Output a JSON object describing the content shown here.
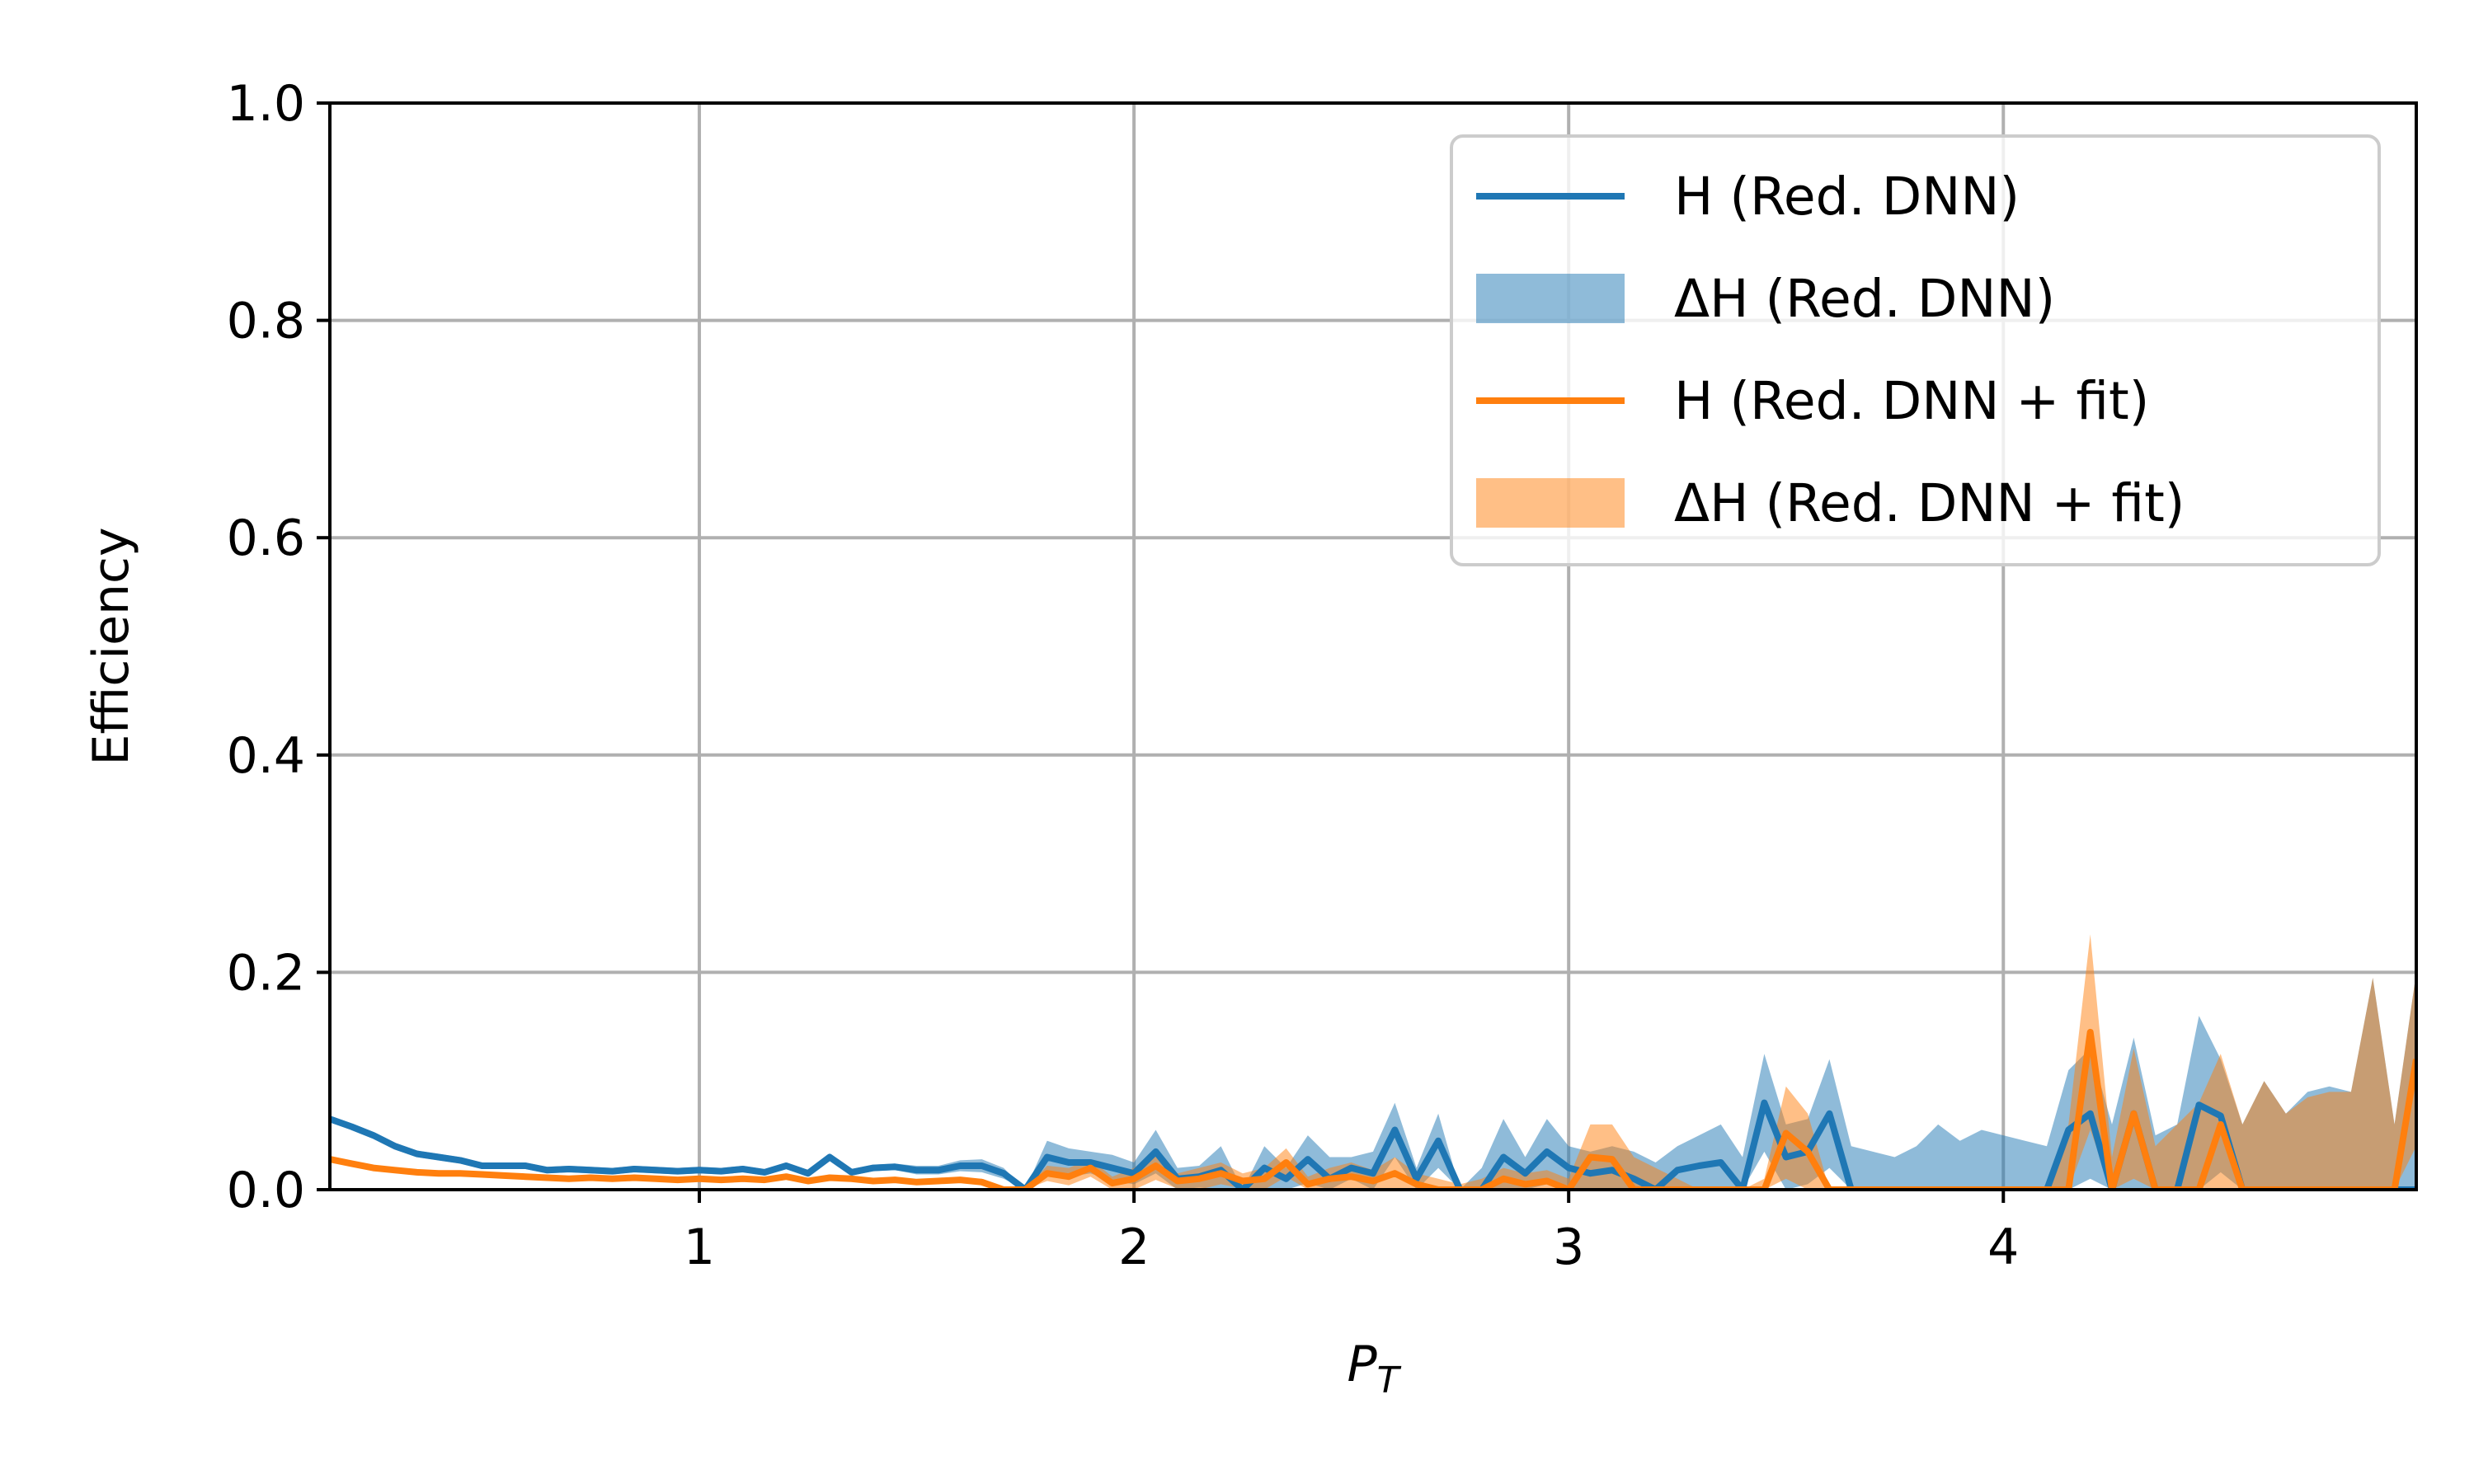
{
  "chart_data": {
    "type": "line",
    "xlabel": "P",
    "xlabel_subscript": "T",
    "ylabel": "Efficiency",
    "xlim": [
      0.15,
      4.95
    ],
    "ylim": [
      0.0,
      1.0
    ],
    "xticks": [
      1,
      2,
      3,
      4
    ],
    "xtick_labels": [
      "1",
      "2",
      "3",
      "4"
    ],
    "yticks": [
      0.0,
      0.2,
      0.4,
      0.6,
      0.8,
      1.0
    ],
    "ytick_labels": [
      "0.0",
      "0.2",
      "0.4",
      "0.6",
      "0.8",
      "1.0"
    ],
    "grid": true,
    "legend_position": "top-right",
    "colors": {
      "blue": "#1f77b4",
      "orange": "#ff7f0e",
      "blue_band": "#1f77b4",
      "orange_band": "#ff7f0e"
    },
    "legend": [
      {
        "label": "H (Red. DNN)",
        "kind": "line",
        "color": "#1f77b4"
      },
      {
        "label": "ΔH (Red. DNN)",
        "kind": "band",
        "color": "#1f77b4"
      },
      {
        "label": "H (Red. DNN + fit)",
        "kind": "line",
        "color": "#ff7f0e"
      },
      {
        "label": "ΔH (Red. DNN + fit)",
        "kind": "band",
        "color": "#ff7f0e"
      }
    ],
    "series": [
      {
        "name": "H (Red. DNN)",
        "kind": "line",
        "color": "#1f77b4",
        "x": [
          0.15,
          0.2,
          0.25,
          0.3,
          0.35,
          0.4,
          0.45,
          0.5,
          0.55,
          0.6,
          0.65,
          0.7,
          0.75,
          0.8,
          0.85,
          0.9,
          0.95,
          1.0,
          1.05,
          1.1,
          1.15,
          1.2,
          1.25,
          1.3,
          1.35,
          1.4,
          1.45,
          1.5,
          1.55,
          1.6,
          1.65,
          1.7,
          1.75,
          1.8,
          1.85,
          1.9,
          1.95,
          2.0,
          2.05,
          2.1,
          2.15,
          2.2,
          2.25,
          2.3,
          2.35,
          2.4,
          2.45,
          2.5,
          2.55,
          2.6,
          2.65,
          2.7,
          2.75,
          2.8,
          2.85,
          2.9,
          2.95,
          3.0,
          3.05,
          3.1,
          3.15,
          3.2,
          3.25,
          3.3,
          3.35,
          3.4,
          3.45,
          3.5,
          3.55,
          3.6,
          3.65,
          3.7,
          3.75,
          3.8,
          3.85,
          3.9,
          3.95,
          4.0,
          4.05,
          4.1,
          4.15,
          4.2,
          4.25,
          4.3,
          4.35,
          4.4,
          4.45,
          4.5,
          4.55,
          4.6,
          4.65,
          4.7,
          4.75,
          4.8,
          4.85,
          4.9,
          4.95
        ],
        "y": [
          0.065,
          0.058,
          0.05,
          0.04,
          0.033,
          0.03,
          0.027,
          0.022,
          0.022,
          0.022,
          0.018,
          0.019,
          0.018,
          0.017,
          0.019,
          0.018,
          0.017,
          0.018,
          0.017,
          0.019,
          0.016,
          0.022,
          0.015,
          0.03,
          0.016,
          0.02,
          0.021,
          0.018,
          0.018,
          0.022,
          0.022,
          0.015,
          0.0,
          0.03,
          0.025,
          0.025,
          0.02,
          0.015,
          0.035,
          0.01,
          0.012,
          0.018,
          0.0,
          0.02,
          0.01,
          0.028,
          0.01,
          0.02,
          0.015,
          0.055,
          0.01,
          0.045,
          0.0,
          0.0,
          0.03,
          0.015,
          0.035,
          0.02,
          0.015,
          0.018,
          0.01,
          0.0,
          0.018,
          0.022,
          0.025,
          0.0,
          0.08,
          0.03,
          0.035,
          0.07,
          0.0,
          0.0,
          0.0,
          0.0,
          0.0,
          0.0,
          0.0,
          0.0,
          0.0,
          0.0,
          0.055,
          0.07,
          0.0,
          0.07,
          0.0,
          0.0,
          0.078,
          0.068,
          0.0,
          0.0,
          0.0,
          0.0,
          0.0,
          0.0,
          0.0,
          0.0,
          0.0
        ]
      },
      {
        "name": "ΔH (Red. DNN)",
        "kind": "band",
        "color": "#1f77b4",
        "x": [
          0.15,
          0.2,
          0.25,
          0.3,
          0.35,
          0.4,
          0.45,
          0.5,
          0.55,
          0.6,
          0.65,
          0.7,
          0.75,
          0.8,
          0.85,
          0.9,
          0.95,
          1.0,
          1.05,
          1.1,
          1.15,
          1.2,
          1.25,
          1.3,
          1.35,
          1.4,
          1.45,
          1.5,
          1.55,
          1.6,
          1.65,
          1.7,
          1.75,
          1.8,
          1.85,
          1.9,
          1.95,
          2.0,
          2.05,
          2.1,
          2.15,
          2.2,
          2.25,
          2.3,
          2.35,
          2.4,
          2.45,
          2.5,
          2.55,
          2.6,
          2.65,
          2.7,
          2.75,
          2.8,
          2.85,
          2.9,
          2.95,
          3.0,
          3.05,
          3.1,
          3.15,
          3.2,
          3.25,
          3.3,
          3.35,
          3.4,
          3.45,
          3.5,
          3.55,
          3.6,
          3.65,
          3.7,
          3.75,
          3.8,
          3.85,
          3.9,
          3.95,
          4.0,
          4.05,
          4.1,
          4.15,
          4.2,
          4.25,
          4.3,
          4.35,
          4.4,
          4.45,
          4.5,
          4.55,
          4.6,
          4.65,
          4.7,
          4.75,
          4.8,
          4.85,
          4.9,
          4.95
        ],
        "upper": [
          0.068,
          0.061,
          0.053,
          0.043,
          0.036,
          0.033,
          0.03,
          0.025,
          0.025,
          0.025,
          0.021,
          0.022,
          0.021,
          0.02,
          0.022,
          0.021,
          0.02,
          0.021,
          0.02,
          0.022,
          0.019,
          0.025,
          0.018,
          0.033,
          0.019,
          0.023,
          0.024,
          0.022,
          0.022,
          0.027,
          0.028,
          0.02,
          0.0,
          0.045,
          0.038,
          0.035,
          0.032,
          0.025,
          0.055,
          0.02,
          0.022,
          0.04,
          0.0,
          0.04,
          0.02,
          0.05,
          0.03,
          0.03,
          0.035,
          0.08,
          0.02,
          0.07,
          0.0,
          0.02,
          0.065,
          0.03,
          0.065,
          0.04,
          0.035,
          0.04,
          0.035,
          0.025,
          0.04,
          0.05,
          0.06,
          0.03,
          0.125,
          0.06,
          0.065,
          0.12,
          0.04,
          0.035,
          0.03,
          0.04,
          0.06,
          0.045,
          0.055,
          0.05,
          0.045,
          0.04,
          0.11,
          0.13,
          0.06,
          0.14,
          0.05,
          0.06,
          0.16,
          0.12,
          0.06,
          0.1,
          0.07,
          0.09,
          0.095,
          0.09,
          0.195,
          0.06,
          0.2
        ],
        "lower": [
          0.062,
          0.055,
          0.047,
          0.037,
          0.03,
          0.027,
          0.024,
          0.019,
          0.019,
          0.019,
          0.015,
          0.016,
          0.015,
          0.014,
          0.016,
          0.015,
          0.014,
          0.015,
          0.014,
          0.016,
          0.013,
          0.019,
          0.012,
          0.027,
          0.013,
          0.017,
          0.018,
          0.014,
          0.014,
          0.017,
          0.016,
          0.01,
          0.0,
          0.015,
          0.012,
          0.015,
          0.008,
          0.005,
          0.015,
          0.0,
          0.002,
          0.0,
          0.0,
          0.0,
          0.0,
          0.006,
          0.0,
          0.01,
          0.0,
          0.03,
          0.0,
          0.02,
          0.0,
          0.0,
          0.0,
          0.0,
          0.005,
          0.0,
          0.0,
          0.0,
          0.0,
          0.0,
          0.0,
          0.0,
          0.0,
          0.0,
          0.035,
          0.0,
          0.005,
          0.02,
          0.0,
          0.0,
          0.0,
          0.0,
          0.0,
          0.0,
          0.0,
          0.0,
          0.0,
          0.0,
          0.0,
          0.01,
          0.0,
          0.0,
          0.0,
          0.0,
          0.0,
          0.016,
          0.0,
          0.0,
          0.0,
          0.0,
          0.0,
          0.0,
          0.0,
          0.0,
          0.0
        ]
      },
      {
        "name": "H (Red. DNN + fit)",
        "kind": "line",
        "color": "#ff7f0e",
        "x": [
          0.15,
          0.2,
          0.25,
          0.3,
          0.35,
          0.4,
          0.45,
          0.5,
          0.55,
          0.6,
          0.65,
          0.7,
          0.75,
          0.8,
          0.85,
          0.9,
          0.95,
          1.0,
          1.05,
          1.1,
          1.15,
          1.2,
          1.25,
          1.3,
          1.35,
          1.4,
          1.45,
          1.5,
          1.55,
          1.6,
          1.65,
          1.7,
          1.75,
          1.8,
          1.85,
          1.9,
          1.95,
          2.0,
          2.05,
          2.1,
          2.15,
          2.2,
          2.25,
          2.3,
          2.35,
          2.4,
          2.45,
          2.5,
          2.55,
          2.6,
          2.65,
          2.7,
          2.75,
          2.8,
          2.85,
          2.9,
          2.95,
          3.0,
          3.05,
          3.1,
          3.15,
          3.2,
          3.25,
          3.3,
          3.35,
          3.4,
          3.45,
          3.5,
          3.55,
          3.6,
          3.65,
          3.7,
          3.75,
          3.8,
          3.85,
          3.9,
          3.95,
          4.0,
          4.05,
          4.1,
          4.15,
          4.2,
          4.25,
          4.3,
          4.35,
          4.4,
          4.45,
          4.5,
          4.55,
          4.6,
          4.65,
          4.7,
          4.75,
          4.8,
          4.85,
          4.9,
          4.95
        ],
        "y": [
          0.028,
          0.024,
          0.02,
          0.018,
          0.016,
          0.015,
          0.015,
          0.014,
          0.013,
          0.012,
          0.011,
          0.01,
          0.011,
          0.01,
          0.011,
          0.01,
          0.009,
          0.01,
          0.009,
          0.01,
          0.009,
          0.012,
          0.008,
          0.011,
          0.01,
          0.008,
          0.009,
          0.007,
          0.008,
          0.009,
          0.007,
          0.0,
          0.0,
          0.015,
          0.012,
          0.02,
          0.006,
          0.01,
          0.022,
          0.008,
          0.01,
          0.015,
          0.008,
          0.01,
          0.025,
          0.005,
          0.01,
          0.012,
          0.008,
          0.015,
          0.005,
          0.0,
          0.0,
          0.0,
          0.01,
          0.005,
          0.008,
          0.0,
          0.03,
          0.028,
          0.0,
          0.0,
          0.0,
          0.0,
          0.0,
          0.0,
          0.0,
          0.052,
          0.035,
          0.0,
          0.0,
          0.0,
          0.0,
          0.0,
          0.0,
          0.0,
          0.0,
          0.0,
          0.0,
          0.0,
          0.0,
          0.145,
          0.0,
          0.07,
          0.0,
          0.0,
          0.0,
          0.06,
          0.0,
          0.0,
          0.0,
          0.0,
          0.0,
          0.0,
          0.0,
          0.0,
          0.12
        ]
      },
      {
        "name": "ΔH (Red. DNN + fit)",
        "kind": "band",
        "color": "#ff7f0e",
        "x": [
          0.15,
          0.2,
          0.25,
          0.3,
          0.35,
          0.4,
          0.45,
          0.5,
          0.55,
          0.6,
          0.65,
          0.7,
          0.75,
          0.8,
          0.85,
          0.9,
          0.95,
          1.0,
          1.05,
          1.1,
          1.15,
          1.2,
          1.25,
          1.3,
          1.35,
          1.4,
          1.45,
          1.5,
          1.55,
          1.6,
          1.65,
          1.7,
          1.75,
          1.8,
          1.85,
          1.9,
          1.95,
          2.0,
          2.05,
          2.1,
          2.15,
          2.2,
          2.25,
          2.3,
          2.35,
          2.4,
          2.45,
          2.5,
          2.55,
          2.6,
          2.65,
          2.7,
          2.75,
          2.8,
          2.85,
          2.9,
          2.95,
          3.0,
          3.05,
          3.1,
          3.15,
          3.2,
          3.25,
          3.3,
          3.35,
          3.4,
          3.45,
          3.5,
          3.55,
          3.6,
          3.65,
          3.7,
          3.75,
          3.8,
          3.85,
          3.9,
          3.95,
          4.0,
          4.05,
          4.1,
          4.15,
          4.2,
          4.25,
          4.3,
          4.35,
          4.4,
          4.45,
          4.5,
          4.55,
          4.6,
          4.65,
          4.7,
          4.75,
          4.8,
          4.85,
          4.9,
          4.95
        ],
        "upper": [
          0.03,
          0.026,
          0.022,
          0.02,
          0.018,
          0.017,
          0.017,
          0.016,
          0.015,
          0.014,
          0.013,
          0.012,
          0.013,
          0.012,
          0.013,
          0.012,
          0.011,
          0.012,
          0.011,
          0.012,
          0.011,
          0.014,
          0.01,
          0.013,
          0.012,
          0.01,
          0.011,
          0.009,
          0.01,
          0.011,
          0.01,
          0.002,
          0.0,
          0.022,
          0.02,
          0.028,
          0.012,
          0.02,
          0.035,
          0.015,
          0.02,
          0.025,
          0.015,
          0.02,
          0.038,
          0.012,
          0.02,
          0.025,
          0.018,
          0.03,
          0.015,
          0.01,
          0.005,
          0.01,
          0.02,
          0.015,
          0.018,
          0.01,
          0.06,
          0.06,
          0.03,
          0.02,
          0.01,
          0.0,
          0.0,
          0.0,
          0.01,
          0.095,
          0.07,
          0.0,
          0.0,
          0.0,
          0.0,
          0.0,
          0.0,
          0.0,
          0.0,
          0.0,
          0.0,
          0.0,
          0.06,
          0.235,
          0.03,
          0.13,
          0.04,
          0.06,
          0.08,
          0.125,
          0.06,
          0.1,
          0.07,
          0.085,
          0.09,
          0.09,
          0.195,
          0.06,
          0.2
        ],
        "lower": [
          0.026,
          0.022,
          0.018,
          0.016,
          0.014,
          0.013,
          0.013,
          0.012,
          0.011,
          0.01,
          0.009,
          0.008,
          0.009,
          0.008,
          0.009,
          0.008,
          0.007,
          0.008,
          0.007,
          0.008,
          0.007,
          0.01,
          0.006,
          0.009,
          0.008,
          0.006,
          0.007,
          0.005,
          0.006,
          0.007,
          0.004,
          0.0,
          0.0,
          0.008,
          0.004,
          0.012,
          0.0,
          0.0,
          0.009,
          0.001,
          0.0,
          0.005,
          0.001,
          0.0,
          0.012,
          0.0,
          0.0,
          0.0,
          0.0,
          0.0,
          0.0,
          0.0,
          0.0,
          0.0,
          0.0,
          0.0,
          0.0,
          0.0,
          0.0,
          0.0,
          0.0,
          0.0,
          0.0,
          0.0,
          0.0,
          0.0,
          0.0,
          0.01,
          0.0,
          0.0,
          0.0,
          0.0,
          0.0,
          0.0,
          0.0,
          0.0,
          0.0,
          0.0,
          0.0,
          0.0,
          0.0,
          0.055,
          0.0,
          0.01,
          0.0,
          0.0,
          0.0,
          0.0,
          0.0,
          0.0,
          0.0,
          0.0,
          0.0,
          0.0,
          0.0,
          0.0,
          0.04
        ]
      }
    ]
  }
}
